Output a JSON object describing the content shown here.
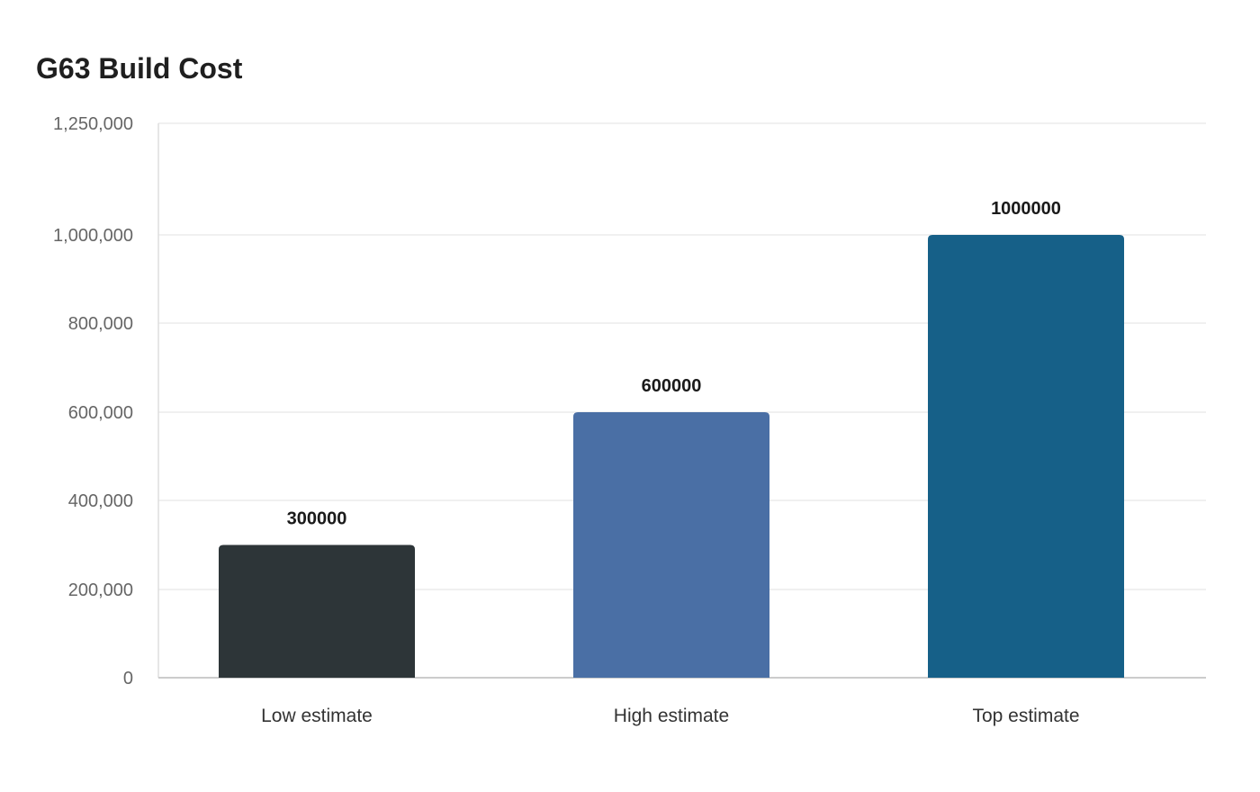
{
  "chart_data": {
    "type": "bar",
    "title": "G63 Build Cost",
    "xlabel": "",
    "ylabel": "",
    "categories": [
      "Low estimate",
      "High estimate",
      "Top estimate"
    ],
    "values": [
      300000,
      600000,
      1000000
    ],
    "data_labels": [
      "300000",
      "600000",
      "1000000"
    ],
    "colors": [
      "#2d3538",
      "#4a6fa5",
      "#166088"
    ],
    "y_ticks": [
      {
        "value": 0,
        "label": "0"
      },
      {
        "value": 200000,
        "label": "200,000"
      },
      {
        "value": 400000,
        "label": "400,000"
      },
      {
        "value": 600000,
        "label": "600,000"
      },
      {
        "value": 800000,
        "label": "800,000"
      },
      {
        "value": 1000000,
        "label": "1,000,000"
      },
      {
        "value": 1250000,
        "label": "1,250,000"
      }
    ],
    "ylim": [
      0,
      1250000
    ],
    "grid": true,
    "legend": "none"
  }
}
